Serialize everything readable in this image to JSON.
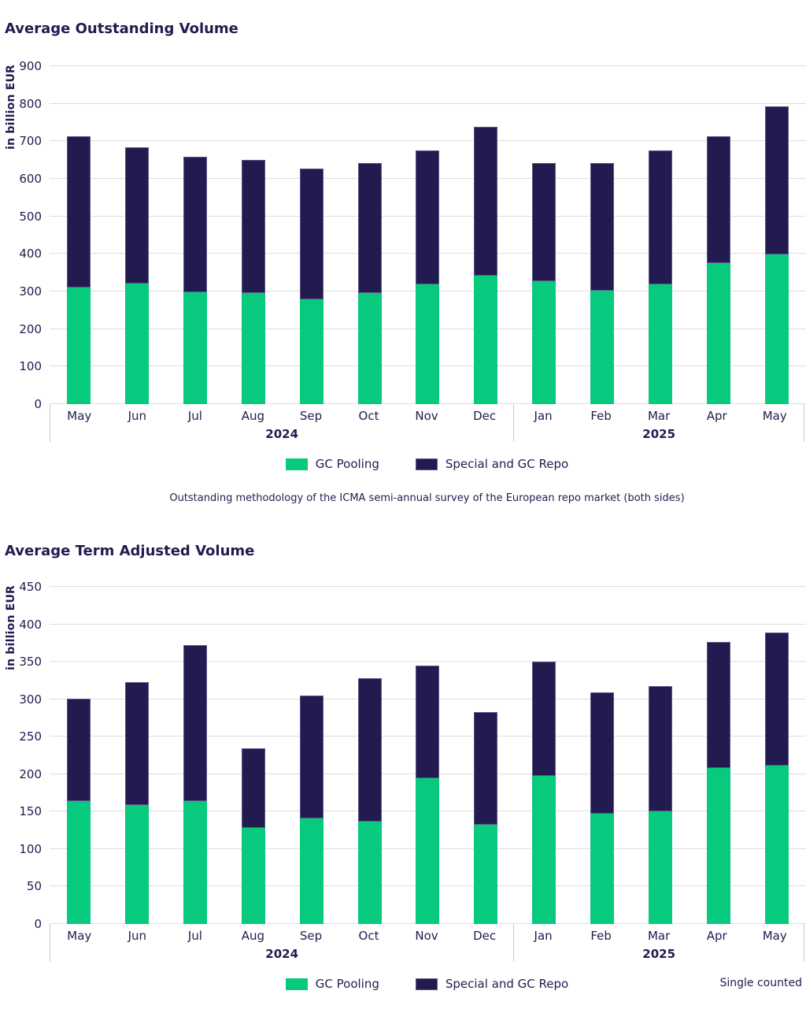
{
  "caption": "Outstanding methodology of the ICMA semi-annual survey of the European repo market (both sides)",
  "colors": {
    "gc_pooling_green": "#07ca7e",
    "repo_navy": "#221b4f",
    "text_navy": "#221b4f",
    "gridline_gray": "#dedede",
    "axis_gray": "#c8c8c8"
  },
  "chart_data": [
    {
      "type": "bar",
      "stacked": true,
      "title": "Average Outstanding Volume",
      "ylabel": "in billion EUR",
      "ylim": [
        0,
        900
      ],
      "yticks": [
        0,
        100,
        200,
        300,
        400,
        500,
        600,
        700,
        800,
        900
      ],
      "grid": true,
      "legend_position": "bottom",
      "categories": [
        "May",
        "Jun",
        "Jul",
        "Aug",
        "Sep",
        "Oct",
        "Nov",
        "Dec",
        "Jan",
        "Feb",
        "Mar",
        "Apr",
        "May"
      ],
      "groups": [
        {
          "label": "2024",
          "months": 8
        },
        {
          "label": "2025",
          "months": 5
        }
      ],
      "series": [
        {
          "name": "GC Pooling",
          "color": "#07ca7e",
          "values": [
            310,
            320,
            297,
            296,
            280,
            296,
            319,
            343,
            327,
            303,
            319,
            375,
            399
          ]
        },
        {
          "name": "Special and GC Repo",
          "color": "#221b4f",
          "values": [
            403,
            363,
            362,
            355,
            347,
            347,
            356,
            395,
            316,
            340,
            356,
            338,
            394
          ]
        }
      ],
      "totals": [
        713,
        683,
        659,
        651,
        627,
        643,
        675,
        738,
        643,
        643,
        675,
        713,
        793
      ]
    },
    {
      "type": "bar",
      "stacked": true,
      "title": "Average Term Adjusted Volume",
      "ylabel": "in billion EUR",
      "ylim": [
        0,
        450
      ],
      "yticks": [
        0,
        50,
        100,
        150,
        200,
        250,
        300,
        350,
        400,
        450
      ],
      "grid": true,
      "legend_position": "bottom",
      "note": "Single counted",
      "categories": [
        "May",
        "Jun",
        "Jul",
        "Aug",
        "Sep",
        "Oct",
        "Nov",
        "Dec",
        "Jan",
        "Feb",
        "Mar",
        "Apr",
        "May"
      ],
      "groups": [
        {
          "label": "2024",
          "months": 8
        },
        {
          "label": "2025",
          "months": 5
        }
      ],
      "series": [
        {
          "name": "GC Pooling",
          "color": "#07ca7e",
          "values": [
            164,
            159,
            164,
            128,
            141,
            137,
            195,
            132,
            198,
            147,
            150,
            208,
            211
          ]
        },
        {
          "name": "Special and GC Repo",
          "color": "#221b4f",
          "values": [
            137,
            164,
            208,
            107,
            164,
            191,
            150,
            151,
            152,
            162,
            168,
            168,
            178
          ]
        }
      ],
      "totals": [
        301,
        323,
        372,
        235,
        305,
        328,
        345,
        283,
        350,
        309,
        318,
        376,
        389
      ]
    }
  ]
}
